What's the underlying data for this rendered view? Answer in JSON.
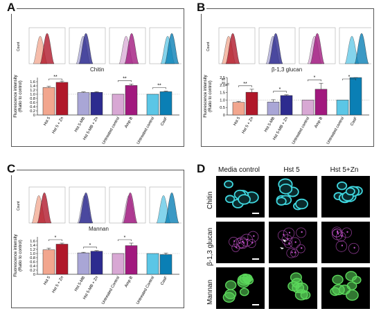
{
  "panels": {
    "A": {
      "letter": "A",
      "histogram_label": "Chitin"
    },
    "B": {
      "letter": "B",
      "histogram_label": "β-1,3 glucan"
    },
    "C": {
      "letter": "C",
      "histogram_label": "Mannan"
    },
    "D": {
      "letter": "D"
    }
  },
  "microscopy": {
    "columns": [
      "Media control",
      "Hst 5",
      "Hst 5+Zn"
    ],
    "rows": [
      "Chitin",
      "β-1,3 glucan",
      "Mannan"
    ]
  },
  "colors": {
    "hst5": "#f2a68e",
    "hst5zn": "#b0182a",
    "hstmb": "#a9a6d6",
    "hstmbzn": "#2d2b8f",
    "untreated_amp": "#d8a8d4",
    "ampb": "#a1197e",
    "untreated_casf": "#5bc6e6",
    "casf": "#0a7fb5",
    "chitin_stain": "#3fd6de",
    "glucan_stain": "#c050c8",
    "mannan_stain": "#5bd85b"
  },
  "chart_data": [
    {
      "type": "bar",
      "panel": "A",
      "ylabel": "Fluorescence intensity\n(Ratio to control)",
      "ylim": [
        0,
        1.8
      ],
      "yticks": [
        "0",
        "0.2",
        "0.4",
        "0.6",
        "0.8",
        "1.0",
        "1.2",
        "1.4",
        "1.6"
      ],
      "categories": [
        "Hst 5",
        "Hst 5 + Zn",
        "Hst 5-MB",
        "Hst 5-MB + Zn",
        "Untreated control",
        "Amp B",
        "Untreated control",
        "CasF"
      ],
      "values": [
        1.32,
        1.57,
        1.08,
        1.09,
        1.0,
        1.42,
        1.0,
        1.12
      ],
      "errors": [
        0.06,
        0.06,
        0.03,
        0.03,
        0.0,
        0.07,
        0.0,
        0.03
      ],
      "significance": [
        {
          "pair": [
            0,
            1
          ],
          "label": "**"
        },
        {
          "pair": [
            4,
            5
          ],
          "label": "**"
        },
        {
          "pair": [
            6,
            7
          ],
          "label": "**"
        }
      ]
    },
    {
      "type": "bar",
      "panel": "B",
      "ylabel": "Fluorescence intensity\n(Ratio to control)",
      "ylim": [
        0,
        2.5
      ],
      "yticks": [
        "0",
        "0.5",
        "1.0",
        "1.5",
        "2.0",
        "2.5"
      ],
      "break_ticks": [
        "20",
        "60"
      ],
      "categories": [
        "Hst 5",
        "Hst 5 + Zn",
        "Hst 5-MB",
        "Hst 5-MB + Zn",
        "Untreated control",
        "Amp B",
        "Untreated control",
        "CasF"
      ],
      "values": [
        0.85,
        1.52,
        0.87,
        1.3,
        1.0,
        1.72,
        1.0,
        2.6
      ],
      "errors": [
        0.05,
        0.2,
        0.15,
        0.05,
        0.0,
        0.4,
        0.0,
        0.1
      ],
      "significance": [
        {
          "pair": [
            0,
            1
          ],
          "label": "**"
        },
        {
          "pair": [
            2,
            3
          ],
          "label": "*"
        },
        {
          "pair": [
            4,
            5
          ],
          "label": "*"
        },
        {
          "pair": [
            6,
            7
          ],
          "label": "*"
        }
      ]
    },
    {
      "type": "bar",
      "panel": "C",
      "ylabel": "Fluorescence intensity\n(Ratio to control)",
      "ylim": [
        0,
        1.8
      ],
      "yticks": [
        "0",
        "0.2",
        "0.4",
        "0.6",
        "0.8",
        "1.0",
        "1.2",
        "1.4",
        "1.6"
      ],
      "categories": [
        "Hst 5",
        "Hst 5 + Zn",
        "Hst 5-MB",
        "Hst 5-MB + Zn",
        "Untreated Control",
        "Amp B",
        "Untreated Control",
        "CasF"
      ],
      "values": [
        1.18,
        1.45,
        1.03,
        1.11,
        1.0,
        1.38,
        1.0,
        0.95
      ],
      "errors": [
        0.08,
        0.05,
        0.03,
        0.03,
        0.0,
        0.12,
        0.0,
        0.07
      ],
      "significance": [
        {
          "pair": [
            0,
            1
          ],
          "label": "*"
        },
        {
          "pair": [
            2,
            3
          ],
          "label": "*"
        },
        {
          "pair": [
            4,
            5
          ],
          "label": "*"
        }
      ]
    }
  ]
}
